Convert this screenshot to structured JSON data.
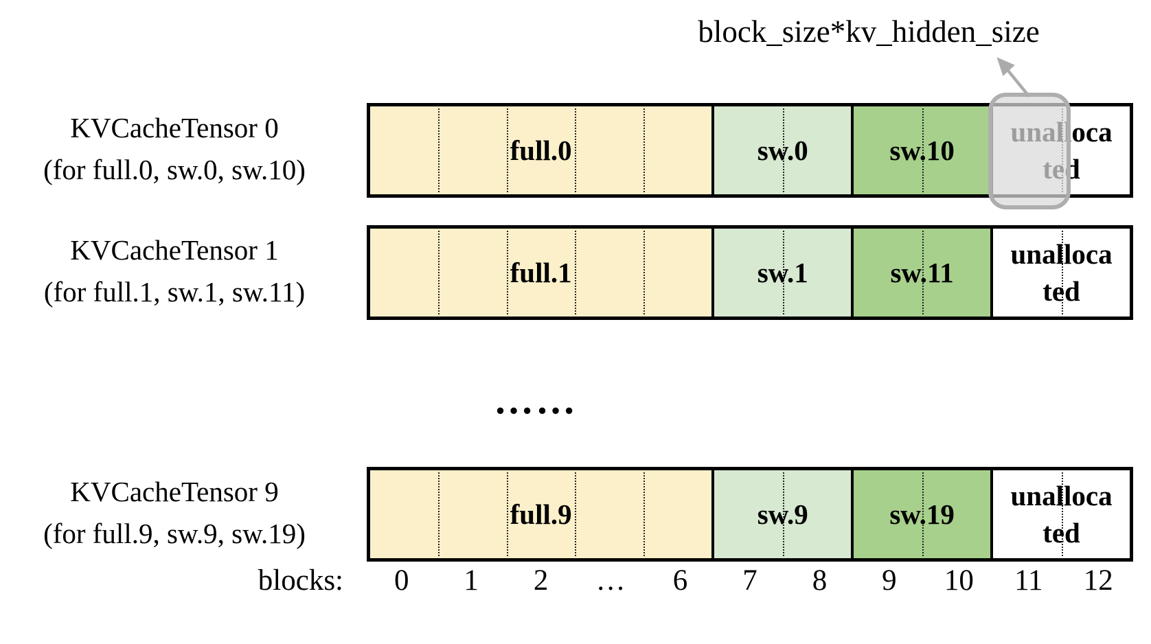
{
  "annotation": {
    "label": "block_size*kv_hidden_size"
  },
  "ellipsis": "……",
  "axis": {
    "prefix": "blocks:",
    "labels": [
      "0",
      "1",
      "2",
      "…",
      "6",
      "7",
      "8",
      "9",
      "10",
      "11",
      "12"
    ]
  },
  "colors": {
    "full": "#FBF0CA",
    "sw_light": "#D7E9D1",
    "sw_dark": "#A8D08D",
    "unallocated": "#FFFFFF",
    "bar_border": "#000000",
    "highlight_fill": "#D9D9D9",
    "highlight_border": "#AEAEAE",
    "arrow": "#ABABAB"
  },
  "highlight": {
    "row_index": 0,
    "column_index": 9
  },
  "rows": [
    {
      "title": "KVCacheTensor 0",
      "subtitle": "(for full.0, sw.0, sw.10)",
      "segments": [
        {
          "label_lines": [
            "full.0"
          ],
          "color": "full",
          "cols": 5
        },
        {
          "label_lines": [
            "sw.0"
          ],
          "color": "sw_light",
          "cols": 2
        },
        {
          "label_lines": [
            "sw.10"
          ],
          "color": "sw_dark",
          "cols": 2
        },
        {
          "label_lines": [
            "unalloca",
            "ted"
          ],
          "color": "unallocated",
          "cols": 2
        }
      ]
    },
    {
      "title": "KVCacheTensor 1",
      "subtitle": "(for full.1, sw.1, sw.11)",
      "segments": [
        {
          "label_lines": [
            "full.1"
          ],
          "color": "full",
          "cols": 5
        },
        {
          "label_lines": [
            "sw.1"
          ],
          "color": "sw_light",
          "cols": 2
        },
        {
          "label_lines": [
            "sw.11"
          ],
          "color": "sw_dark",
          "cols": 2
        },
        {
          "label_lines": [
            "unalloca",
            "ted"
          ],
          "color": "unallocated",
          "cols": 2
        }
      ]
    },
    {
      "title": "KVCacheTensor 9",
      "subtitle": "(for full.9, sw.9, sw.19)",
      "segments": [
        {
          "label_lines": [
            "full.9"
          ],
          "color": "full",
          "cols": 5
        },
        {
          "label_lines": [
            "sw.9"
          ],
          "color": "sw_light",
          "cols": 2
        },
        {
          "label_lines": [
            "sw.19"
          ],
          "color": "sw_dark",
          "cols": 2
        },
        {
          "label_lines": [
            "unalloca",
            "ted"
          ],
          "color": "unallocated",
          "cols": 2
        }
      ]
    }
  ]
}
